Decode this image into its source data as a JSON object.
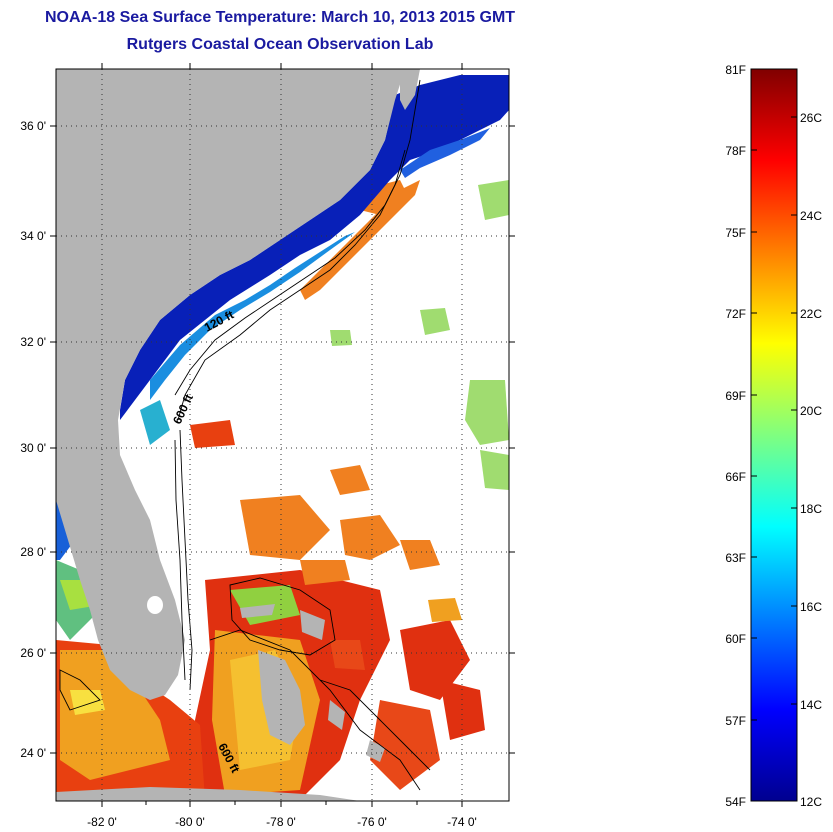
{
  "header": {
    "title": "NOAA-18 Sea Surface Temperature:  March 10, 2013 2015 GMT",
    "subtitle": "Rutgers Coastal Ocean Observation Lab"
  },
  "map": {
    "lon_ticks": [
      "-82 0'",
      "-80 0'",
      "-78 0'",
      "-76 0'",
      "-74 0'"
    ],
    "lat_ticks": [
      "36 0'",
      "34 0'",
      "32 0'",
      "30 0'",
      "28 0'",
      "26 0'",
      "24 0'"
    ],
    "contour_labels": [
      "120 ft",
      "600 ft",
      "600 ft"
    ],
    "land_color": "#b4b4b4",
    "background_color": "#ffffff"
  },
  "colorbar": {
    "fahrenheit_labels": [
      "81F",
      "78F",
      "75F",
      "72F",
      "69F",
      "66F",
      "63F",
      "60F",
      "57F",
      "54F"
    ],
    "celsius_labels": [
      "26C",
      "24C",
      "22C",
      "20C",
      "18C",
      "16C",
      "14C",
      "12C"
    ],
    "range_c": [
      12,
      27
    ],
    "colormap": "jet"
  }
}
